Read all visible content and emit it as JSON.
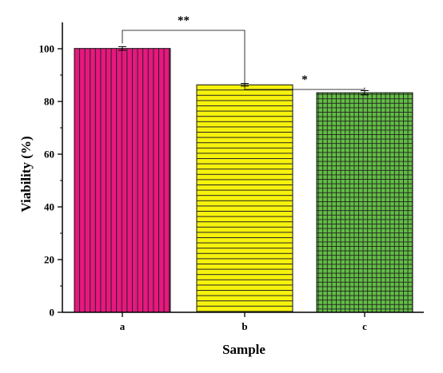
{
  "chart_data": {
    "type": "bar",
    "title": "",
    "xlabel": "Sample",
    "ylabel": "Viability (%)",
    "categories": [
      "a",
      "b",
      "c"
    ],
    "values": [
      100.1,
      86.3,
      83.3
    ],
    "errors": [
      0.7,
      0.5,
      0.8
    ],
    "ylim": [
      0,
      110
    ],
    "yticks": [
      0,
      20,
      40,
      60,
      80,
      100
    ],
    "grid": false,
    "legend": "none",
    "bar_colors": [
      "#e8177f",
      "#f6f20c",
      "#62be45"
    ],
    "bar_patterns": [
      "vertical-lines",
      "horizontal-lines",
      "grid"
    ],
    "significance": [
      {
        "between": [
          "a",
          "b"
        ],
        "label": "**"
      },
      {
        "between": [
          "b",
          "c"
        ],
        "label": "*"
      }
    ]
  }
}
